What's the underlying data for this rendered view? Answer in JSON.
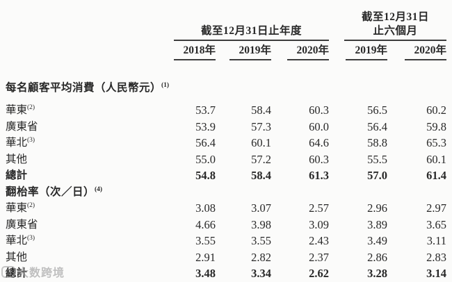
{
  "table": {
    "col_groups": [
      {
        "title_lines": [
          "截至12月31日止年度"
        ],
        "span": 3
      },
      {
        "title_lines": [
          "截至12月31日",
          "止六個月"
        ],
        "span": 2
      }
    ],
    "year_headers": [
      "2018年",
      "2019年",
      "2020年",
      "2019年",
      "2020年"
    ],
    "sections": [
      {
        "header": "每名顧客平均消費（人民幣元）",
        "header_sup": "(1)",
        "rows": [
          {
            "label": "華東",
            "sup": "(2)",
            "bold": false,
            "values": [
              "53.7",
              "58.4",
              "60.3",
              "56.5",
              "60.2"
            ]
          },
          {
            "label": "廣東省",
            "sup": "",
            "bold": false,
            "values": [
              "53.9",
              "57.3",
              "60.0",
              "56.4",
              "59.8"
            ]
          },
          {
            "label": "華北",
            "sup": "(3)",
            "bold": false,
            "values": [
              "56.4",
              "60.1",
              "64.6",
              "58.8",
              "65.3"
            ]
          },
          {
            "label": "其他",
            "sup": "",
            "bold": false,
            "values": [
              "55.0",
              "57.2",
              "60.3",
              "55.5",
              "60.1"
            ]
          },
          {
            "label": "總計",
            "sup": "",
            "bold": true,
            "values": [
              "54.8",
              "58.4",
              "61.3",
              "57.0",
              "61.4"
            ]
          }
        ]
      },
      {
        "header": "翻枱率（次／日）",
        "header_sup": "(4)",
        "rows": [
          {
            "label": "華東",
            "sup": "(2)",
            "bold": false,
            "values": [
              "3.08",
              "3.07",
              "2.57",
              "2.96",
              "2.97"
            ]
          },
          {
            "label": "廣東省",
            "sup": "",
            "bold": false,
            "values": [
              "4.66",
              "3.98",
              "3.09",
              "3.89",
              "3.65"
            ]
          },
          {
            "label": "華北",
            "sup": "(3)",
            "bold": false,
            "values": [
              "3.55",
              "3.55",
              "2.43",
              "3.49",
              "3.11"
            ]
          },
          {
            "label": "其他",
            "sup": "",
            "bold": false,
            "values": [
              "2.91",
              "2.82",
              "2.37",
              "2.86",
              "2.83"
            ]
          },
          {
            "label": "總計",
            "sup": "",
            "bold": true,
            "values": [
              "3.48",
              "3.34",
              "2.62",
              "3.28",
              "3.14"
            ]
          }
        ]
      }
    ]
  },
  "watermark": {
    "icon": "rounded-square-logo-icon",
    "text": "大数跨境"
  }
}
